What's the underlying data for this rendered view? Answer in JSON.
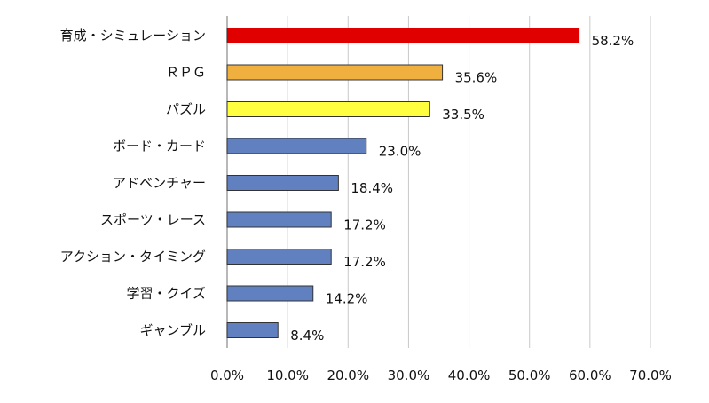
{
  "chart_data": {
    "type": "bar",
    "orientation": "horizontal",
    "categories": [
      "育成・シミュレーション",
      "ＲＰＧ",
      "パズル",
      "ボード・カード",
      "アドベンチャー",
      "スポーツ・レース",
      "アクション・タイミング",
      "学習・クイズ",
      "ギャンブル"
    ],
    "values": [
      58.2,
      35.6,
      33.5,
      23.0,
      18.4,
      17.2,
      17.2,
      14.2,
      8.4
    ],
    "data_labels": [
      "58.2%",
      "35.6%",
      "33.5%",
      "23.0%",
      "18.4%",
      "17.2%",
      "17.2%",
      "14.2%",
      "8.4%"
    ],
    "bar_colors": [
      "#e00000",
      "#f0b040",
      "#ffff40",
      "#6080c0",
      "#6080c0",
      "#6080c0",
      "#6080c0",
      "#6080c0",
      "#6080c0"
    ],
    "xlim": [
      0,
      70
    ],
    "x_ticks": [
      0,
      10,
      20,
      30,
      40,
      50,
      60,
      70
    ],
    "x_tick_labels": [
      "0.0%",
      "10.0%",
      "20.0%",
      "30.0%",
      "40.0%",
      "50.0%",
      "60.0%",
      "70.0%"
    ],
    "grid": true,
    "legend": false,
    "title": "",
    "xlabel": "",
    "ylabel": ""
  }
}
